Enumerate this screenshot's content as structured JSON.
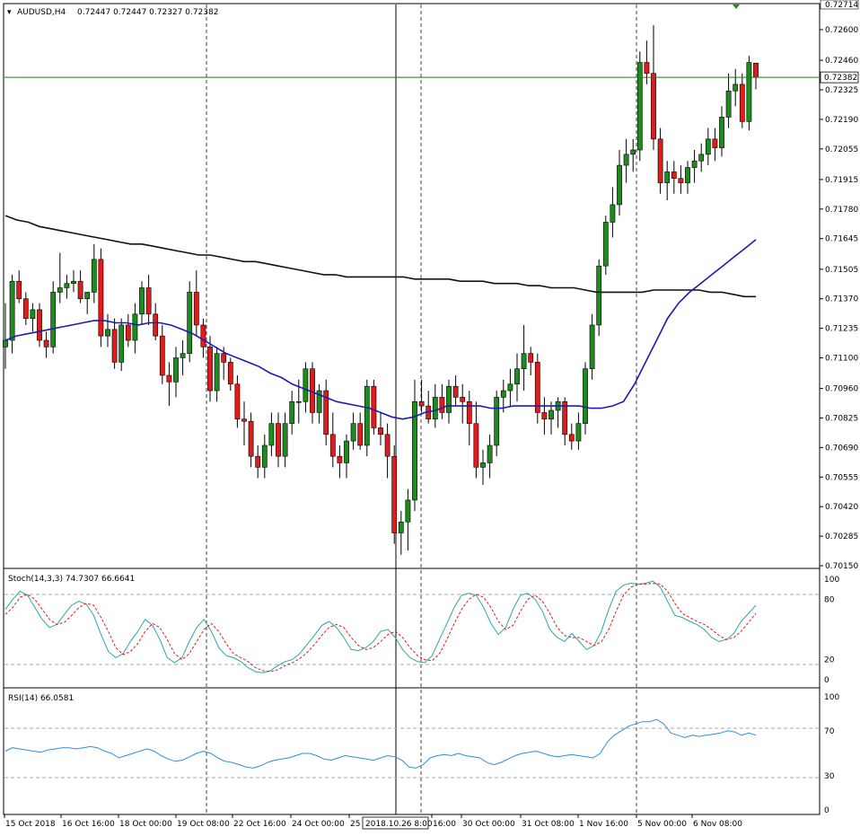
{
  "header": {
    "symbol": "AUDUSD,H4",
    "ohlc": "0.72447 0.72447 0.72327 0.72382"
  },
  "colors": {
    "bull": "#1f8a1f",
    "bear": "#e01b1b",
    "ma_fast": "#1c1cb4",
    "ma_slow": "#111111",
    "price_line": "#1e7a1e",
    "stoch_main": "#2aa6a6",
    "stoch_signal": "#e01b1b",
    "rsi": "#2f8fd8",
    "grid": "#9a9a9a"
  },
  "price_axis": {
    "ticks": [
      "0.72600",
      "0.72460",
      "0.72325",
      "0.72190",
      "0.72055",
      "0.71915",
      "0.71780",
      "0.71645",
      "0.71505",
      "0.71370",
      "0.71235",
      "0.71100",
      "0.70960",
      "0.70825",
      "0.70690",
      "0.70555",
      "0.70420",
      "0.70285",
      "0.70150"
    ],
    "top_label": "0.72714",
    "current_label": "0.72382"
  },
  "time_axis": {
    "labels": [
      "15 Oct 2018",
      "16 Oct 16:00",
      "18 Oct 00:00",
      "19 Oct 08:00",
      "22 Oct 16:00",
      "24 Oct 00:00",
      "25",
      "16:00",
      "30 Oct 00:00",
      "31 Oct 08:00",
      "1 Nov 16:00",
      "5 Nov 00:00",
      "6 Nov 08:00"
    ],
    "crosshair_label": "2018.10.26 8:00"
  },
  "stoch": {
    "label": "Stoch(14,3,3) 74.7307 66.6641",
    "axis": [
      "100",
      "80",
      "20",
      "0"
    ]
  },
  "rsi": {
    "label": "RSI(14) 66.0581",
    "axis": [
      "100",
      "70",
      "30",
      "0"
    ]
  },
  "chart_data": {
    "type": "candlestick",
    "instrument": "AUDUSD",
    "timeframe": "H4",
    "ylim": [
      0.7015,
      0.72714
    ],
    "current_price": 0.72382,
    "candles": [
      [
        0.7115,
        0.7135,
        0.7105,
        0.7118
      ],
      [
        0.7118,
        0.7148,
        0.7112,
        0.7145
      ],
      [
        0.7145,
        0.715,
        0.7135,
        0.7137
      ],
      [
        0.7137,
        0.714,
        0.7125,
        0.7128
      ],
      [
        0.7128,
        0.7135,
        0.7122,
        0.7132
      ],
      [
        0.7132,
        0.7135,
        0.7115,
        0.7118
      ],
      [
        0.7118,
        0.7122,
        0.711,
        0.7115
      ],
      [
        0.7115,
        0.7145,
        0.7112,
        0.714
      ],
      [
        0.714,
        0.7158,
        0.7135,
        0.7142
      ],
      [
        0.7142,
        0.7148,
        0.7137,
        0.7144
      ],
      [
        0.7144,
        0.715,
        0.714,
        0.7145
      ],
      [
        0.7145,
        0.715,
        0.7135,
        0.7137
      ],
      [
        0.7137,
        0.714,
        0.713,
        0.714
      ],
      [
        0.714,
        0.7162,
        0.7135,
        0.7155
      ],
      [
        0.7155,
        0.716,
        0.7115,
        0.712
      ],
      [
        0.712,
        0.713,
        0.7115,
        0.7123
      ],
      [
        0.7123,
        0.7128,
        0.7105,
        0.7108
      ],
      [
        0.7108,
        0.7128,
        0.7104,
        0.7125
      ],
      [
        0.7125,
        0.713,
        0.7115,
        0.7118
      ],
      [
        0.7118,
        0.7135,
        0.7112,
        0.713
      ],
      [
        0.713,
        0.7145,
        0.7125,
        0.7142
      ],
      [
        0.7142,
        0.7148,
        0.7125,
        0.713
      ],
      [
        0.713,
        0.7135,
        0.7118,
        0.712
      ],
      [
        0.712,
        0.7125,
        0.7098,
        0.7102
      ],
      [
        0.7102,
        0.7108,
        0.7088,
        0.7099
      ],
      [
        0.7099,
        0.7115,
        0.7092,
        0.711
      ],
      [
        0.711,
        0.7118,
        0.7102,
        0.7112
      ],
      [
        0.7112,
        0.7145,
        0.7108,
        0.714
      ],
      [
        0.714,
        0.715,
        0.712,
        0.7125
      ],
      [
        0.7125,
        0.7128,
        0.711,
        0.7115
      ],
      [
        0.7115,
        0.712,
        0.709,
        0.7095
      ],
      [
        0.7095,
        0.7115,
        0.709,
        0.7112
      ],
      [
        0.7112,
        0.7115,
        0.71,
        0.7108
      ],
      [
        0.7108,
        0.711,
        0.7095,
        0.7098
      ],
      [
        0.7098,
        0.7102,
        0.7078,
        0.7082
      ],
      [
        0.7082,
        0.709,
        0.707,
        0.7081
      ],
      [
        0.7081,
        0.7085,
        0.706,
        0.7065
      ],
      [
        0.7065,
        0.707,
        0.7055,
        0.706
      ],
      [
        0.706,
        0.7075,
        0.7055,
        0.707
      ],
      [
        0.707,
        0.7085,
        0.7065,
        0.708
      ],
      [
        0.708,
        0.7085,
        0.706,
        0.7065
      ],
      [
        0.7065,
        0.7085,
        0.706,
        0.708
      ],
      [
        0.708,
        0.7095,
        0.7075,
        0.709
      ],
      [
        0.709,
        0.71,
        0.708,
        0.709
      ],
      [
        0.709,
        0.7108,
        0.7085,
        0.7105
      ],
      [
        0.7105,
        0.7108,
        0.708,
        0.7085
      ],
      [
        0.7085,
        0.7098,
        0.708,
        0.7095
      ],
      [
        0.7095,
        0.71,
        0.707,
        0.7075
      ],
      [
        0.7075,
        0.7085,
        0.706,
        0.7065
      ],
      [
        0.7065,
        0.707,
        0.7055,
        0.7062
      ],
      [
        0.7062,
        0.7075,
        0.7055,
        0.7072
      ],
      [
        0.7072,
        0.7085,
        0.7068,
        0.708
      ],
      [
        0.708,
        0.7085,
        0.7068,
        0.707
      ],
      [
        0.707,
        0.71,
        0.7065,
        0.7097
      ],
      [
        0.7097,
        0.71,
        0.7075,
        0.7078
      ],
      [
        0.7078,
        0.7085,
        0.707,
        0.7075
      ],
      [
        0.7075,
        0.708,
        0.7055,
        0.7065
      ],
      [
        0.7065,
        0.707,
        0.7025,
        0.703
      ],
      [
        0.703,
        0.704,
        0.702,
        0.7035
      ],
      [
        0.7035,
        0.705,
        0.7022,
        0.7045
      ],
      [
        0.7045,
        0.71,
        0.704,
        0.709
      ],
      [
        0.709,
        0.71,
        0.7085,
        0.7088
      ],
      [
        0.7088,
        0.7095,
        0.708,
        0.7082
      ],
      [
        0.7082,
        0.7098,
        0.7078,
        0.7092
      ],
      [
        0.7092,
        0.7098,
        0.7082,
        0.7085
      ],
      [
        0.7085,
        0.71,
        0.708,
        0.7097
      ],
      [
        0.7097,
        0.7102,
        0.7088,
        0.7092
      ],
      [
        0.7092,
        0.7098,
        0.708,
        0.709
      ],
      [
        0.709,
        0.7095,
        0.707,
        0.708
      ],
      [
        0.708,
        0.709,
        0.7055,
        0.706
      ],
      [
        0.706,
        0.7068,
        0.7052,
        0.7062
      ],
      [
        0.7062,
        0.7075,
        0.7055,
        0.707
      ],
      [
        0.707,
        0.7095,
        0.7065,
        0.7092
      ],
      [
        0.7092,
        0.71,
        0.7085,
        0.7095
      ],
      [
        0.7095,
        0.7105,
        0.7088,
        0.7098
      ],
      [
        0.7098,
        0.7112,
        0.709,
        0.7105
      ],
      [
        0.7105,
        0.7125,
        0.7095,
        0.7112
      ],
      [
        0.7112,
        0.7115,
        0.7102,
        0.7108
      ],
      [
        0.7108,
        0.7112,
        0.708,
        0.7085
      ],
      [
        0.7085,
        0.7092,
        0.7075,
        0.7082
      ],
      [
        0.7082,
        0.709,
        0.7075,
        0.7086
      ],
      [
        0.7086,
        0.7092,
        0.7078,
        0.709
      ],
      [
        0.709,
        0.7092,
        0.707,
        0.7075
      ],
      [
        0.7075,
        0.708,
        0.7068,
        0.7072
      ],
      [
        0.7072,
        0.7085,
        0.7068,
        0.708
      ],
      [
        0.708,
        0.7108,
        0.7075,
        0.7105
      ],
      [
        0.7105,
        0.713,
        0.71,
        0.7125
      ],
      [
        0.7125,
        0.7155,
        0.712,
        0.7152
      ],
      [
        0.7152,
        0.7175,
        0.7148,
        0.7172
      ],
      [
        0.7172,
        0.7188,
        0.7165,
        0.718
      ],
      [
        0.718,
        0.7205,
        0.7175,
        0.7198
      ],
      [
        0.7198,
        0.721,
        0.719,
        0.7203
      ],
      [
        0.7203,
        0.721,
        0.7195,
        0.7205
      ],
      [
        0.7205,
        0.725,
        0.72,
        0.7245
      ],
      [
        0.7245,
        0.7255,
        0.7235,
        0.724
      ],
      [
        0.724,
        0.7262,
        0.7205,
        0.721
      ],
      [
        0.721,
        0.7215,
        0.7185,
        0.719
      ],
      [
        0.719,
        0.72,
        0.7182,
        0.7195
      ],
      [
        0.7195,
        0.72,
        0.7185,
        0.7192
      ],
      [
        0.7192,
        0.7198,
        0.7185,
        0.719
      ],
      [
        0.719,
        0.72,
        0.7185,
        0.7197
      ],
      [
        0.7197,
        0.7205,
        0.719,
        0.72
      ],
      [
        0.72,
        0.7208,
        0.7195,
        0.7203
      ],
      [
        0.7203,
        0.7215,
        0.7198,
        0.721
      ],
      [
        0.721,
        0.7215,
        0.72,
        0.7206
      ],
      [
        0.7206,
        0.7225,
        0.7202,
        0.722
      ],
      [
        0.722,
        0.724,
        0.7215,
        0.7232
      ],
      [
        0.7232,
        0.7242,
        0.7225,
        0.7235
      ],
      [
        0.7235,
        0.724,
        0.7215,
        0.7218
      ],
      [
        0.7218,
        0.7248,
        0.7214,
        0.7245
      ],
      [
        0.72447,
        0.72447,
        0.72327,
        0.72382
      ]
    ],
    "ma_fast": [
      0.7118,
      0.712,
      0.7121,
      0.7122,
      0.7123,
      0.7124,
      0.7125,
      0.7126,
      0.7127,
      0.7127,
      0.7126,
      0.7126,
      0.7125,
      0.7126,
      0.7126,
      0.7125,
      0.7123,
      0.7121,
      0.7118,
      0.7115,
      0.7112,
      0.711,
      0.7108,
      0.7106,
      0.7103,
      0.7101,
      0.7098,
      0.7096,
      0.7094,
      0.7092,
      0.709,
      0.7089,
      0.7088,
      0.7087,
      0.7085,
      0.7083,
      0.7082,
      0.7083,
      0.7085,
      0.7086,
      0.7088,
      0.7088,
      0.7088,
      0.7088,
      0.7087,
      0.7087,
      0.7088,
      0.7088,
      0.7088,
      0.7088,
      0.7088,
      0.7088,
      0.7088,
      0.7087,
      0.7087,
      0.7088,
      0.709,
      0.7098,
      0.7108,
      0.7118,
      0.7128,
      0.7135,
      0.714,
      0.7144,
      0.7148,
      0.7152,
      0.7156,
      0.716,
      0.7164
    ],
    "ma_fast_start_index": 45,
    "ma_slow": [
      0.7175,
      0.7173,
      0.7172,
      0.717,
      0.7169,
      0.7168,
      0.7167,
      0.7166,
      0.7165,
      0.7164,
      0.7163,
      0.7162,
      0.7162,
      0.7161,
      0.716,
      0.7159,
      0.7158,
      0.7157,
      0.7157,
      0.7156,
      0.7155,
      0.7154,
      0.7154,
      0.7153,
      0.7152,
      0.7151,
      0.715,
      0.7149,
      0.7148,
      0.7148,
      0.7147,
      0.7147,
      0.7147,
      0.7147,
      0.7147,
      0.7147,
      0.7146,
      0.7146,
      0.7146,
      0.7146,
      0.7145,
      0.7145,
      0.7145,
      0.7144,
      0.7144,
      0.7144,
      0.7143,
      0.7143,
      0.7142,
      0.7142,
      0.7142,
      0.7141,
      0.714,
      0.714,
      0.714,
      0.714,
      0.714,
      0.7141,
      0.7141,
      0.7141,
      0.7141,
      0.7141,
      0.714,
      0.714,
      0.7139,
      0.7138,
      0.7138
    ],
    "stoch_main": [
      70,
      80,
      88,
      84,
      72,
      60,
      52,
      55,
      65,
      74,
      78,
      75,
      64,
      45,
      28,
      22,
      26,
      38,
      48,
      60,
      54,
      40,
      22,
      17,
      22,
      38,
      52,
      60,
      48,
      32,
      24,
      22,
      18,
      12,
      8,
      7,
      9,
      14,
      18,
      20,
      26,
      35,
      44,
      54,
      58,
      52,
      42,
      30,
      29,
      32,
      38,
      48,
      50,
      42,
      30,
      22,
      18,
      17,
      24,
      40,
      56,
      72,
      84,
      86,
      84,
      72,
      56,
      45,
      52,
      70,
      84,
      86,
      80,
      68,
      50,
      42,
      38,
      46,
      38,
      30,
      34,
      48,
      70,
      88,
      94,
      96,
      95,
      96,
      98,
      92,
      78,
      64,
      62,
      58,
      55,
      50,
      42,
      38,
      40,
      46,
      58,
      66,
      74
    ],
    "stoch_signal": [
      65,
      72,
      82,
      85,
      80,
      70,
      60,
      55,
      57,
      64,
      72,
      76,
      74,
      62,
      48,
      32,
      25,
      28,
      36,
      48,
      56,
      52,
      40,
      26,
      20,
      26,
      38,
      50,
      56,
      48,
      36,
      26,
      22,
      18,
      12,
      9,
      8,
      10,
      14,
      17,
      21,
      27,
      35,
      44,
      52,
      55,
      52,
      42,
      34,
      30,
      32,
      38,
      45,
      48,
      42,
      32,
      24,
      20,
      19,
      26,
      40,
      56,
      70,
      80,
      85,
      82,
      72,
      58,
      50,
      54,
      68,
      80,
      84,
      78,
      66,
      52,
      44,
      42,
      42,
      38,
      34,
      38,
      50,
      68,
      84,
      92,
      95,
      95,
      96,
      95,
      88,
      76,
      66,
      62,
      58,
      55,
      50,
      44,
      40,
      42,
      48,
      57,
      66
    ]
  },
  "rsi_data": [
    52,
    55,
    54,
    53,
    52,
    51,
    53,
    54,
    55,
    55,
    54,
    55,
    56,
    55,
    52,
    50,
    46,
    48,
    50,
    52,
    54,
    52,
    48,
    45,
    43,
    44,
    47,
    50,
    52,
    50,
    46,
    43,
    42,
    40,
    38,
    37,
    39,
    42,
    44,
    45,
    46,
    48,
    50,
    50,
    48,
    45,
    44,
    46,
    48,
    47,
    46,
    45,
    44,
    46,
    48,
    47,
    44,
    38,
    37,
    40,
    46,
    48,
    49,
    48,
    50,
    48,
    47,
    46,
    42,
    40,
    42,
    45,
    48,
    50,
    51,
    52,
    50,
    48,
    47,
    48,
    49,
    48,
    47,
    46,
    50,
    60,
    66,
    70,
    74,
    76,
    78,
    78,
    80,
    76,
    68,
    66,
    64,
    66,
    65,
    66,
    67,
    68,
    70,
    69,
    66,
    68,
    66
  ]
}
